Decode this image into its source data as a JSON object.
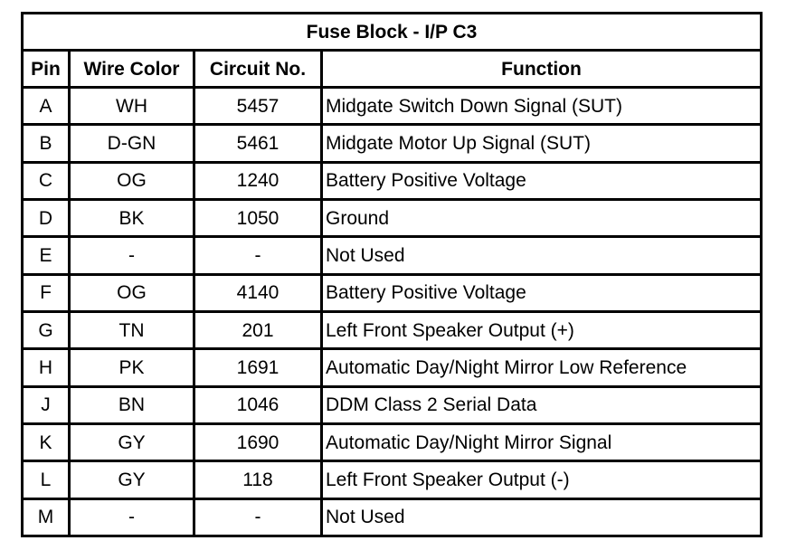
{
  "title": "Fuse Block - I/P C3",
  "headers": [
    "Pin",
    "Wire Color",
    "Circuit No.",
    "Function"
  ],
  "rows": [
    {
      "pin": "A",
      "color": "WH",
      "circuit": "5457",
      "function": "Midgate Switch Down Signal (SUT)"
    },
    {
      "pin": "B",
      "color": "D-GN",
      "circuit": "5461",
      "function": "Midgate Motor Up Signal (SUT)"
    },
    {
      "pin": "C",
      "color": "OG",
      "circuit": "1240",
      "function": "Battery Positive Voltage"
    },
    {
      "pin": "D",
      "color": "BK",
      "circuit": "1050",
      "function": "Ground"
    },
    {
      "pin": "E",
      "color": "-",
      "circuit": "-",
      "function": "Not Used"
    },
    {
      "pin": "F",
      "color": "OG",
      "circuit": "4140",
      "function": "Battery Positive Voltage"
    },
    {
      "pin": "G",
      "color": "TN",
      "circuit": "201",
      "function": "Left Front Speaker Output (+)"
    },
    {
      "pin": "H",
      "color": "PK",
      "circuit": "1691",
      "function": "Automatic Day/Night Mirror Low Reference"
    },
    {
      "pin": "J",
      "color": "BN",
      "circuit": "1046",
      "function": "DDM Class 2 Serial Data"
    },
    {
      "pin": "K",
      "color": "GY",
      "circuit": "1690",
      "function": "Automatic Day/Night Mirror Signal"
    },
    {
      "pin": "L",
      "color": "GY",
      "circuit": "118",
      "function": "Left Front Speaker Output (-)"
    },
    {
      "pin": "M",
      "color": "-",
      "circuit": "-",
      "function": "Not Used"
    }
  ]
}
